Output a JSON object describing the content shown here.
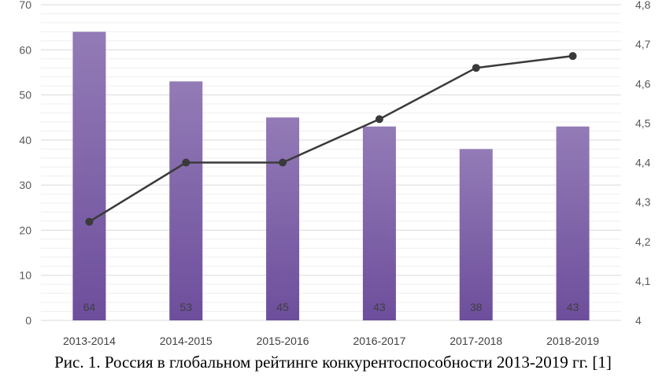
{
  "caption": "Рис. 1. Россия в глобальном рейтинге конкурентоспособности 2013-2019 гг. [1]",
  "chart_data": {
    "type": "bar",
    "categories": [
      "2013-2014",
      "2014-2015",
      "2015-2016",
      "2016-2017",
      "2017-2018",
      "2018-2019"
    ],
    "series": [
      {
        "type": "bar",
        "axis": "left",
        "values": [
          64,
          53,
          45,
          43,
          38,
          43
        ],
        "data_labels": [
          "64",
          "53",
          "45",
          "43",
          "38",
          "43"
        ],
        "color": "#7d5ea7"
      },
      {
        "type": "line",
        "axis": "right",
        "values": [
          4.25,
          4.4,
          4.4,
          4.51,
          4.64,
          4.67
        ],
        "color": "#3a3a3a"
      }
    ],
    "y_left": {
      "min": 0,
      "max": 70,
      "step": 10,
      "tick_labels": [
        "0",
        "10",
        "20",
        "30",
        "40",
        "50",
        "60",
        "70"
      ]
    },
    "y_right": {
      "min": 4,
      "max": 4.8,
      "step": 0.1,
      "tick_labels": [
        "4",
        "4,1",
        "4,2",
        "4,3",
        "4,4",
        "4,5",
        "4,6",
        "4,7",
        "4,8"
      ]
    },
    "grid": true,
    "legend": false,
    "title": "",
    "xlabel": "",
    "ylabel": ""
  }
}
